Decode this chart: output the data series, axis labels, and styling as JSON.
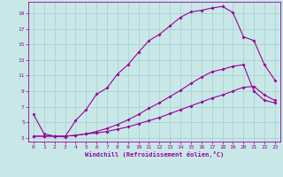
{
  "xlabel": "Windchill (Refroidissement éolien,°C)",
  "bg_color": "#c8e8e8",
  "line_color": "#990099",
  "grid_color": "#aacccc",
  "xlim": [
    -0.5,
    23.5
  ],
  "ylim": [
    2.5,
    20.5
  ],
  "xticks": [
    0,
    1,
    2,
    3,
    4,
    5,
    6,
    7,
    8,
    9,
    10,
    11,
    12,
    13,
    14,
    15,
    16,
    17,
    18,
    19,
    20,
    21,
    22,
    23
  ],
  "yticks": [
    3,
    5,
    7,
    9,
    11,
    13,
    15,
    17,
    19
  ],
  "series1_x": [
    0,
    1,
    2,
    3,
    4,
    5,
    6,
    7,
    8,
    9,
    10,
    11,
    12,
    13,
    14,
    15,
    16,
    17,
    18,
    19,
    20,
    21,
    22,
    23
  ],
  "series1_y": [
    6.0,
    3.5,
    3.2,
    3.1,
    5.2,
    6.6,
    8.6,
    9.4,
    11.2,
    12.4,
    14.0,
    15.5,
    16.3,
    17.4,
    18.5,
    19.2,
    19.4,
    19.7,
    19.9,
    19.1,
    16.0,
    15.5,
    12.4,
    10.4
  ],
  "series2_x": [
    0,
    1,
    2,
    3,
    4,
    5,
    6,
    7,
    8,
    9,
    10,
    11,
    12,
    13,
    14,
    15,
    16,
    17,
    18,
    19,
    20,
    21,
    22,
    23
  ],
  "series2_y": [
    3.2,
    3.2,
    3.2,
    3.2,
    3.3,
    3.5,
    3.8,
    4.2,
    4.7,
    5.3,
    6.0,
    6.8,
    7.5,
    8.3,
    9.1,
    10.0,
    10.8,
    11.5,
    11.8,
    12.2,
    12.4,
    9.0,
    7.8,
    7.5
  ],
  "series3_x": [
    0,
    1,
    2,
    3,
    4,
    5,
    6,
    7,
    8,
    9,
    10,
    11,
    12,
    13,
    14,
    15,
    16,
    17,
    18,
    19,
    20,
    21,
    22,
    23
  ],
  "series3_y": [
    3.2,
    3.2,
    3.2,
    3.2,
    3.3,
    3.5,
    3.6,
    3.8,
    4.1,
    4.4,
    4.8,
    5.2,
    5.6,
    6.1,
    6.6,
    7.1,
    7.6,
    8.1,
    8.5,
    9.0,
    9.5,
    9.6,
    8.5,
    7.8
  ]
}
